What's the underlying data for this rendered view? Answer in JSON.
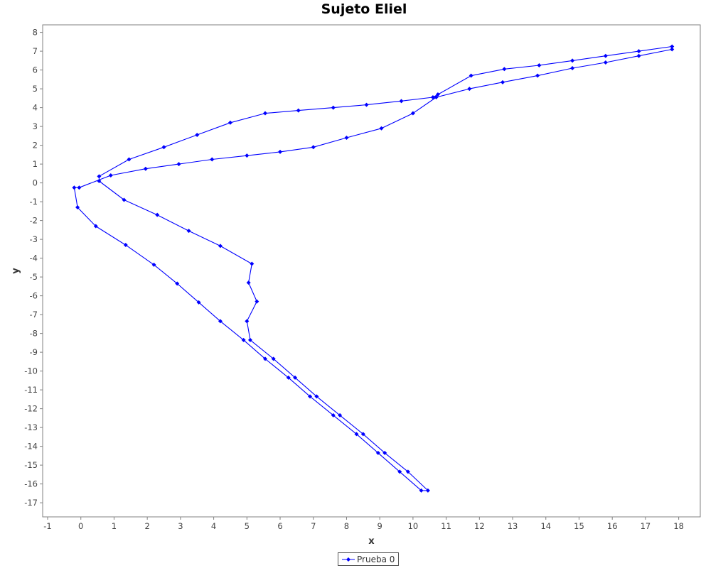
{
  "chart_data": {
    "type": "line",
    "title": "Sujeto Eliel",
    "xlabel": "x",
    "ylabel": "y",
    "xlim": [
      -1.15,
      18.65
    ],
    "ylim": [
      -17.75,
      8.4
    ],
    "xticks": [
      -1,
      0,
      1,
      2,
      3,
      4,
      5,
      6,
      7,
      8,
      9,
      10,
      11,
      12,
      13,
      14,
      15,
      16,
      17,
      18
    ],
    "yticks": [
      8,
      7,
      6,
      5,
      4,
      3,
      2,
      1,
      0,
      -1,
      -2,
      -3,
      -4,
      -5,
      -6,
      -7,
      -8,
      -9,
      -10,
      -11,
      -12,
      -13,
      -14,
      -15,
      -16,
      -17
    ],
    "grid": false,
    "legend_position": "bottom-center",
    "series": [
      {
        "name": "Prueba 0",
        "color": "#0000ff",
        "x": [
          17.8,
          16.8,
          15.8,
          14.8,
          13.75,
          12.7,
          11.7,
          10.7,
          10.0,
          9.05,
          8.0,
          7.0,
          6.0,
          5.0,
          3.95,
          2.95,
          1.95,
          0.9,
          -0.05,
          -0.2,
          -0.1,
          0.45,
          1.35,
          2.2,
          2.9,
          3.55,
          4.2,
          4.9,
          5.55,
          6.25,
          6.9,
          7.6,
          8.3,
          8.95,
          9.6,
          10.25,
          10.45,
          9.85,
          9.15,
          8.5,
          7.8,
          7.1,
          6.45,
          5.8,
          5.1,
          5.0,
          5.3,
          5.05,
          5.15,
          4.2,
          3.25,
          2.3,
          1.3,
          0.55,
          0.55,
          1.45,
          2.5,
          3.5,
          4.5,
          5.55,
          6.55,
          7.6,
          8.6,
          9.65,
          10.6,
          10.75,
          11.75,
          12.75,
          13.8,
          14.8,
          15.8,
          16.8,
          17.8
        ],
        "y": [
          7.1,
          6.75,
          6.4,
          6.1,
          5.7,
          5.35,
          5.0,
          4.55,
          3.7,
          2.9,
          2.4,
          1.9,
          1.65,
          1.45,
          1.25,
          1.0,
          0.75,
          0.4,
          -0.25,
          -0.25,
          -1.3,
          -2.3,
          -3.3,
          -4.35,
          -5.35,
          -6.35,
          -7.35,
          -8.35,
          -9.35,
          -10.35,
          -11.35,
          -12.35,
          -13.35,
          -14.35,
          -15.35,
          -16.35,
          -16.35,
          -15.35,
          -14.35,
          -13.35,
          -12.35,
          -11.35,
          -10.35,
          -9.35,
          -8.35,
          -7.35,
          -6.3,
          -5.3,
          -4.3,
          -3.35,
          -2.55,
          -1.7,
          -0.9,
          0.1,
          0.35,
          1.25,
          1.9,
          2.55,
          3.2,
          3.7,
          3.85,
          4.0,
          4.15,
          4.35,
          4.55,
          4.7,
          5.7,
          6.05,
          6.25,
          6.5,
          6.75,
          7.0,
          7.25
        ]
      }
    ]
  }
}
